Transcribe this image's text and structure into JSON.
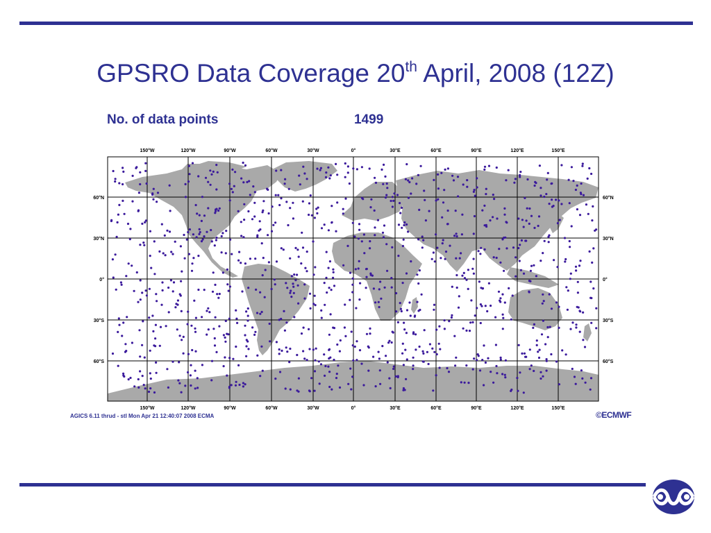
{
  "slide": {
    "title_prefix": "GPSRO Data Coverage 20",
    "title_sup": "th",
    "title_suffix": " April, 2008 (12Z)"
  },
  "map": {
    "count_label": "No. of data points",
    "count_value": "1499",
    "lon_labels": [
      "150°W",
      "120°W",
      "90°W",
      "60°W",
      "30°W",
      "0°",
      "30°E",
      "60°E",
      "90°E",
      "120°E",
      "150°E"
    ],
    "lat_labels": [
      "60°N",
      "30°N",
      "0°",
      "30°S",
      "60°S"
    ],
    "footer_caption": "AGICS 6.11 thrud - stl Mon Apr 21 12:40:07 2008   ECMA",
    "wordmark": "ECMWF",
    "colors": {
      "land": "#a9a9a9",
      "points": "#3b1a9c",
      "grid": "#000000",
      "brand": "#2e3192"
    }
  }
}
